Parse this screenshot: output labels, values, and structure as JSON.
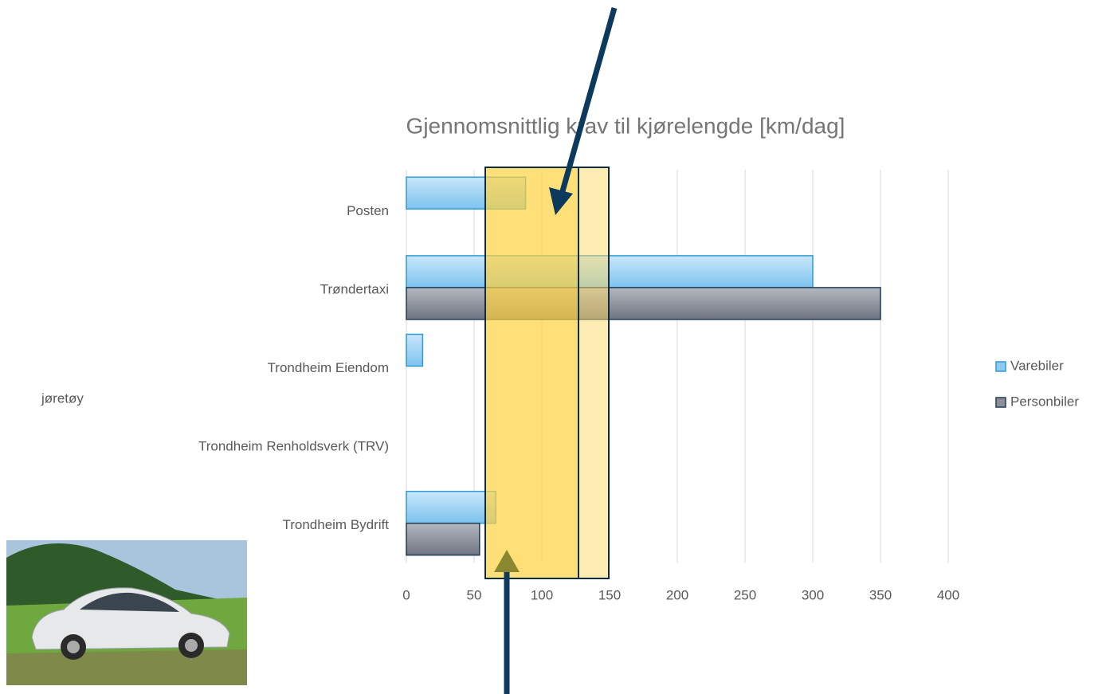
{
  "chart_data": {
    "type": "hbar",
    "title": "Gjennomsnittlig krav til kjørelengde [km/dag]",
    "categories": [
      "Posten",
      "Trøndertaxi",
      "Trondheim Eiendom",
      "Trondheim Renholdsverk (TRV)",
      "Trondheim Bydrift"
    ],
    "series": [
      {
        "name": "Varebiler",
        "color": "#8ccbf0",
        "edgecolor": "#2e9ad6",
        "values": [
          88,
          300,
          12,
          null,
          66
        ]
      },
      {
        "name": "Personbiler",
        "color": "#8a8f99",
        "edgecolor": "#1f3b57",
        "values": [
          null,
          350,
          null,
          null,
          54
        ]
      }
    ],
    "xlim": [
      0,
      400
    ],
    "xticks": [
      0,
      50,
      100,
      150,
      200,
      250,
      300,
      350,
      400
    ],
    "grid": true,
    "legend": "right",
    "fragment_text": "jøretøy"
  }
}
